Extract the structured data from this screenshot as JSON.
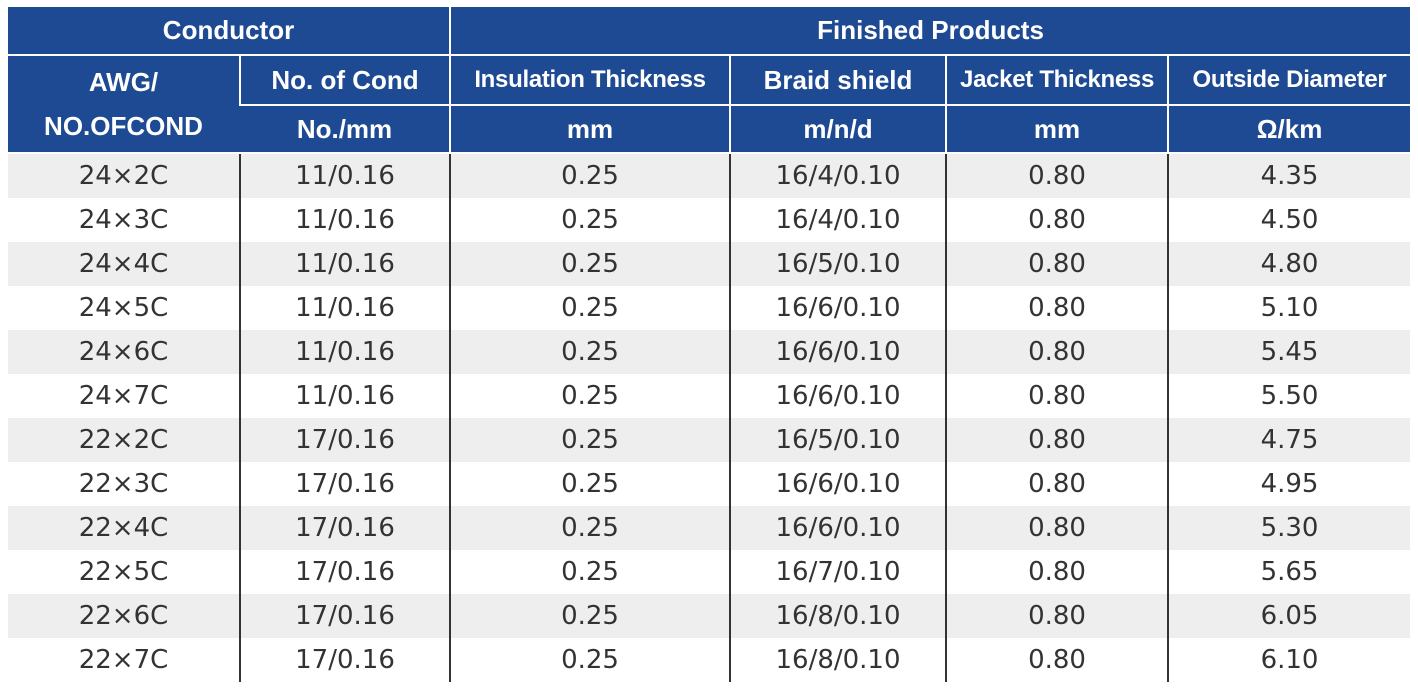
{
  "header": {
    "group_conductor": "Conductor",
    "group_finished": "Finished Products",
    "awg_label_line1": "AWG/",
    "awg_label_line2": "NO.OFCOND",
    "no_of_cond": "No. of Cond",
    "insulation_thickness": "Insulation Thickness",
    "braid_shield": "Braid shield",
    "jacket_thickness": "Jacket Thickness",
    "outside_diameter": "Outside Diameter",
    "unit_no_mm": "No./mm",
    "unit_insulation": "mm",
    "unit_braid": "m/n/d",
    "unit_jacket": "mm",
    "unit_diameter": "Ω/km"
  },
  "rows": [
    [
      "24×2C",
      "11/0.16",
      "0.25",
      "16/4/0.10",
      "0.80",
      "4.35"
    ],
    [
      "24×3C",
      "11/0.16",
      "0.25",
      "16/4/0.10",
      "0.80",
      "4.50"
    ],
    [
      "24×4C",
      "11/0.16",
      "0.25",
      "16/5/0.10",
      "0.80",
      "4.80"
    ],
    [
      "24×5C",
      "11/0.16",
      "0.25",
      "16/6/0.10",
      "0.80",
      "5.10"
    ],
    [
      "24×6C",
      "11/0.16",
      "0.25",
      "16/6/0.10",
      "0.80",
      "5.45"
    ],
    [
      "24×7C",
      "11/0.16",
      "0.25",
      "16/6/0.10",
      "0.80",
      "5.50"
    ],
    [
      "22×2C",
      "17/0.16",
      "0.25",
      "16/5/0.10",
      "0.80",
      "4.75"
    ],
    [
      "22×3C",
      "17/0.16",
      "0.25",
      "16/6/0.10",
      "0.80",
      "4.95"
    ],
    [
      "22×4C",
      "17/0.16",
      "0.25",
      "16/6/0.10",
      "0.80",
      "5.30"
    ],
    [
      "22×5C",
      "17/0.16",
      "0.25",
      "16/7/0.10",
      "0.80",
      "5.65"
    ],
    [
      "22×6C",
      "17/0.16",
      "0.25",
      "16/8/0.10",
      "0.80",
      "6.05"
    ],
    [
      "22×7C",
      "17/0.16",
      "0.25",
      "16/8/0.10",
      "0.80",
      "6.10"
    ]
  ]
}
